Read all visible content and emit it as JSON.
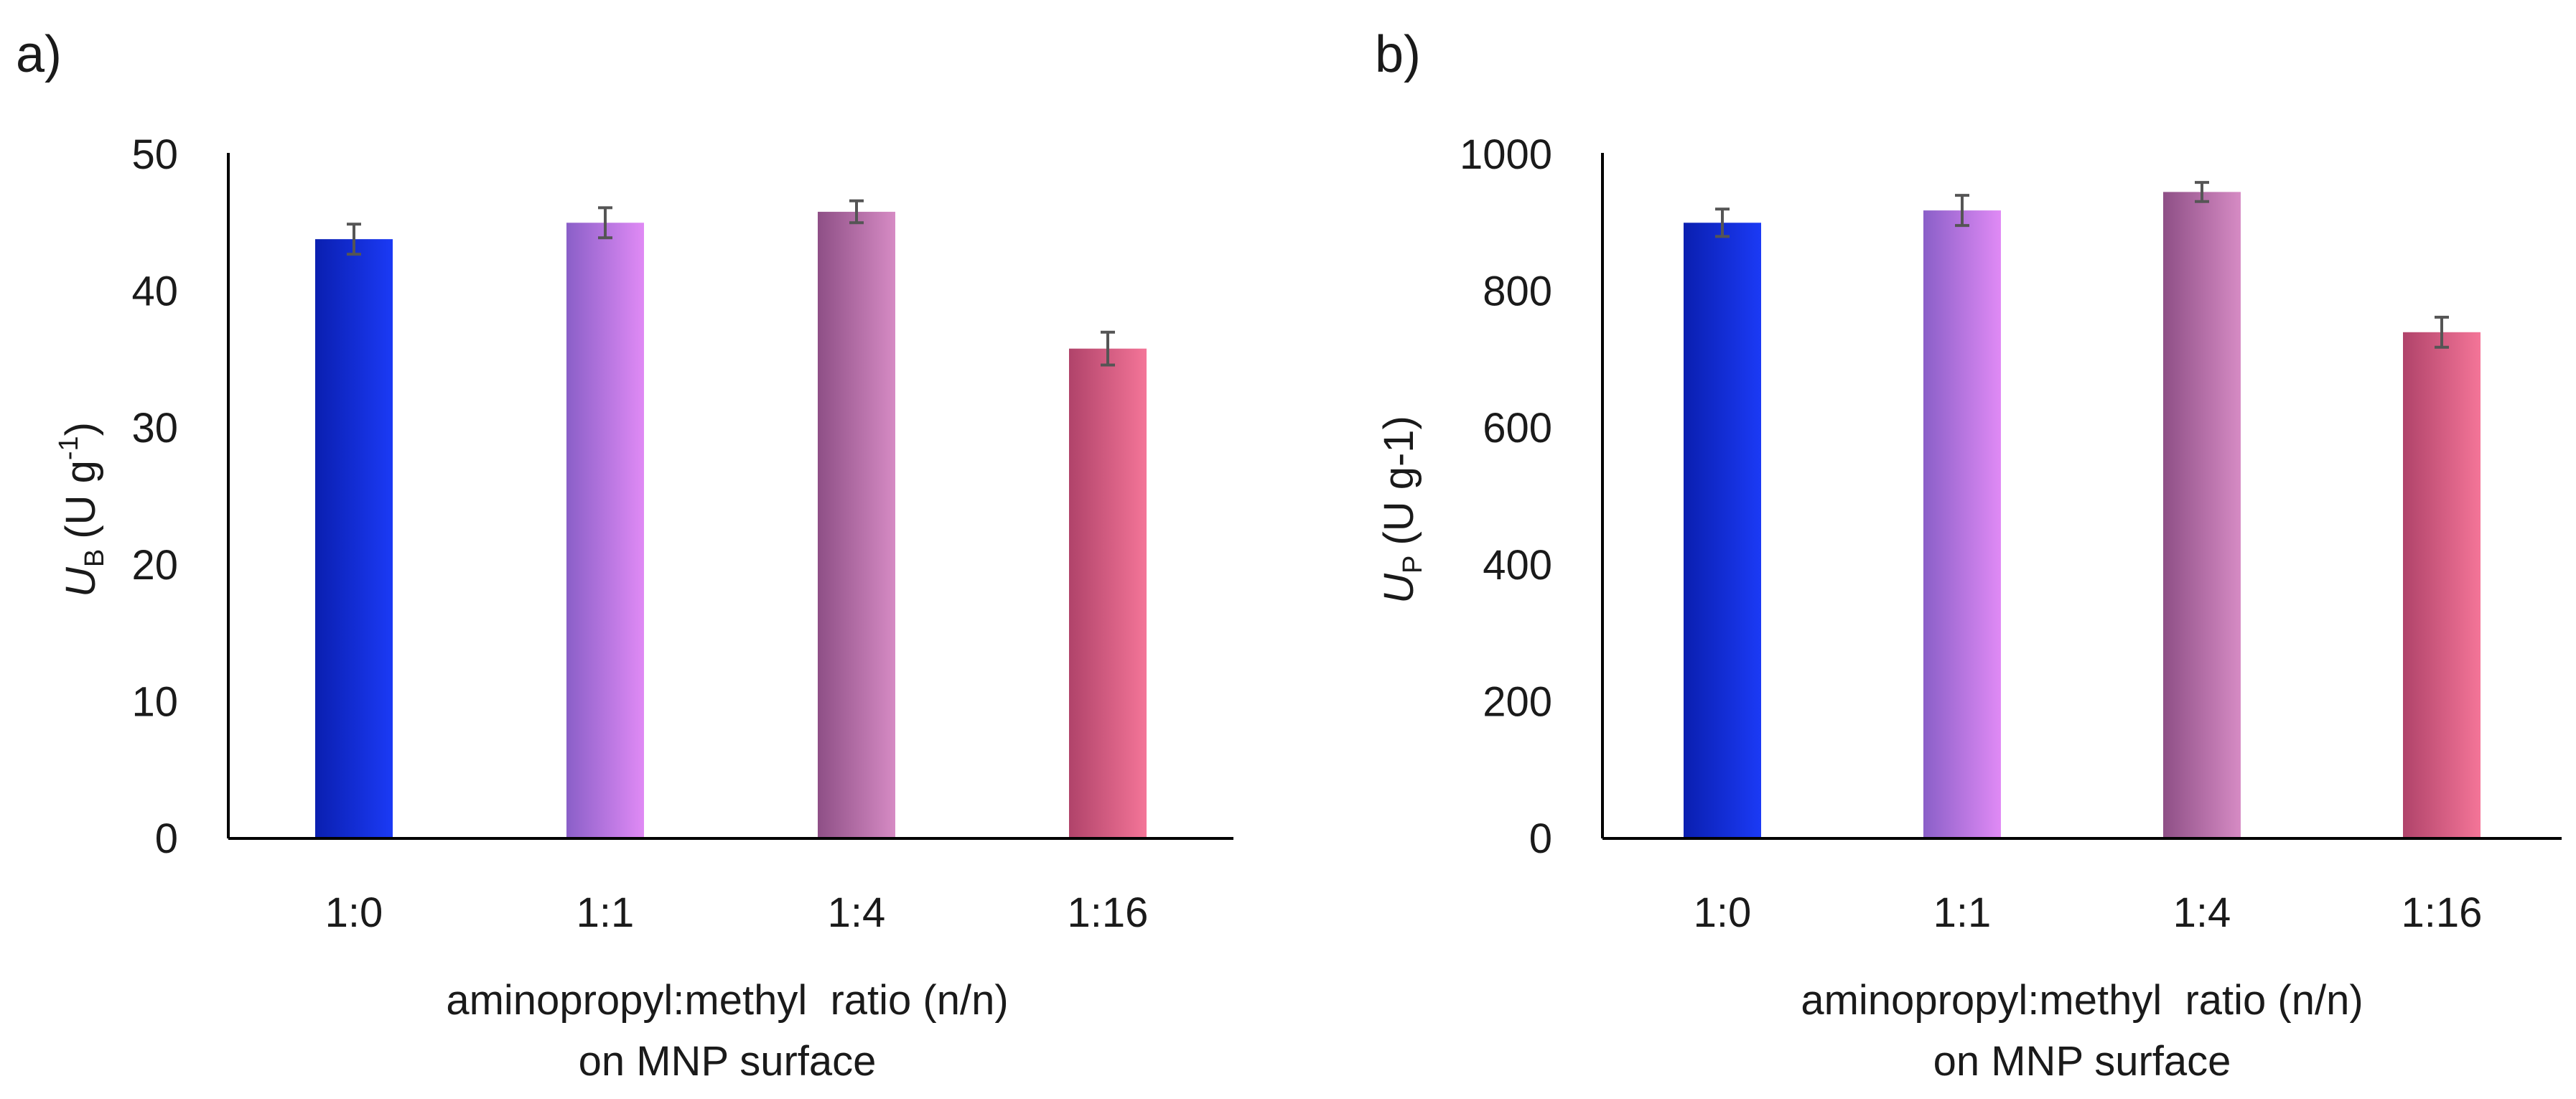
{
  "chart_data": [
    {
      "panel_label": "a)",
      "type": "bar",
      "categories": [
        "1:0",
        "1:1",
        "1:4",
        "1:16"
      ],
      "values": [
        43.8,
        45.0,
        45.8,
        35.8
      ],
      "errors": [
        1.1,
        1.1,
        0.8,
        1.2
      ],
      "ylim": [
        0,
        50
      ],
      "yticks": [
        0,
        10,
        20,
        30,
        40,
        50
      ],
      "yticks_text": [
        "0",
        "10",
        "20",
        "30",
        "40",
        "50"
      ],
      "ylabel": {
        "symbol": "U",
        "sub": "B",
        "unit": "(U g",
        "sup": "-1",
        "close": ")"
      },
      "xlabel": [
        "aminopropyl:methyl  ratio (n/n)",
        "on MNP surface"
      ],
      "colors": [
        [
          "#0a1fb0",
          "#1b3af5"
        ],
        [
          "#8a5fc8",
          "#e08af5"
        ],
        [
          "#8e4f86",
          "#d68bc4"
        ],
        [
          "#b0436a",
          "#f47598"
        ]
      ]
    },
    {
      "panel_label": "b)",
      "type": "bar",
      "categories": [
        "1:0",
        "1:1",
        "1:4",
        "1:16"
      ],
      "values": [
        900,
        918,
        945,
        740
      ],
      "errors": [
        20,
        22,
        14,
        22
      ],
      "ylim": [
        0,
        1000
      ],
      "yticks": [
        0,
        200,
        400,
        600,
        800,
        1000
      ],
      "yticks_text": [
        "0",
        "200",
        "400",
        "600",
        "800",
        "1000"
      ],
      "ylabel": {
        "symbol": "U",
        "sub": "P",
        "unit": "(U g-1)",
        "sup": "",
        "close": ""
      },
      "xlabel": [
        "aminopropyl:methyl  ratio (n/n)",
        "on MNP surface"
      ],
      "colors": [
        [
          "#0a1fb0",
          "#1b3af5"
        ],
        [
          "#8a5fc8",
          "#e08af5"
        ],
        [
          "#8e4f86",
          "#d68bc4"
        ],
        [
          "#b0436a",
          "#f47598"
        ]
      ]
    }
  ]
}
